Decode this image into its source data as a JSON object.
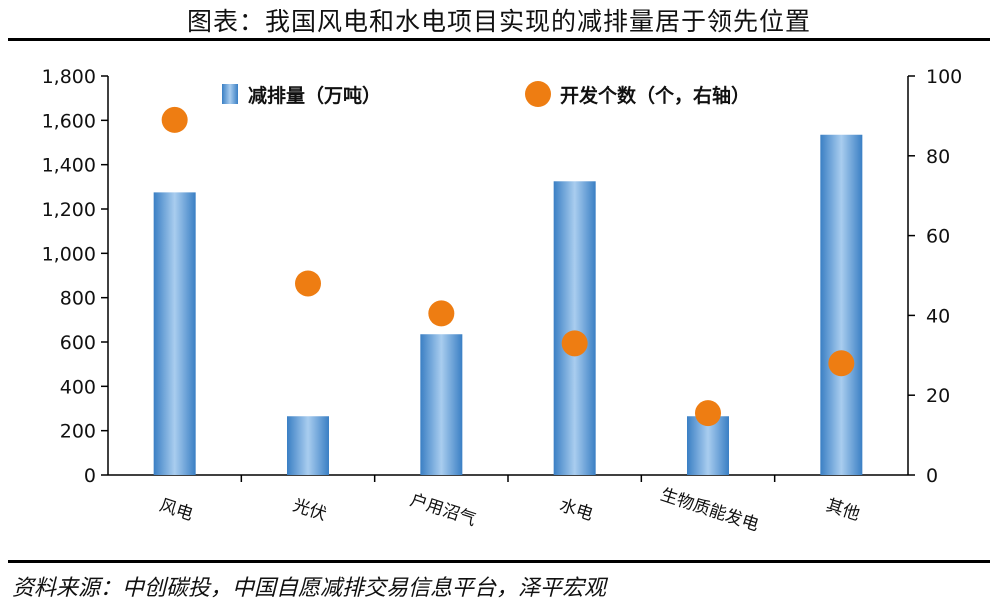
{
  "header": {
    "title": "图表：我国风电和水电项目实现的减排量居于领先位置"
  },
  "footer": {
    "source": "资料来源：中创碳投，中国自愿减排交易信息平台，泽平宏观"
  },
  "colors": {
    "bar": "#3a7fc4",
    "bar_light": "#a9cdef",
    "dot": "#ee7d12",
    "axis": "#000000"
  },
  "chart_data": {
    "type": "bar",
    "categories": [
      "风电",
      "光伏",
      "户用沼气",
      "水电",
      "生物质能发电",
      "其他"
    ],
    "series": [
      {
        "name": "减排量（万吨）",
        "type": "bar",
        "axis": "left",
        "values": [
          1275,
          265,
          635,
          1325,
          265,
          1535
        ]
      },
      {
        "name": "开发个数（个，右轴）",
        "type": "scatter",
        "axis": "right",
        "values": [
          89,
          48,
          40.5,
          33,
          15.5,
          28
        ]
      }
    ],
    "y_left": {
      "ylim": [
        0,
        1800
      ],
      "ticks": [
        "0",
        "200",
        "400",
        "600",
        "800",
        "1,000",
        "1,200",
        "1,400",
        "1,600",
        "1,800"
      ]
    },
    "y_right": {
      "ylim": [
        0,
        100
      ],
      "ticks": [
        "0",
        "20",
        "40",
        "60",
        "80",
        "100"
      ]
    },
    "legend": {
      "placement": "top",
      "entries": [
        "减排量（万吨）",
        "开发个数（个，右轴）"
      ]
    },
    "grid": false
  }
}
